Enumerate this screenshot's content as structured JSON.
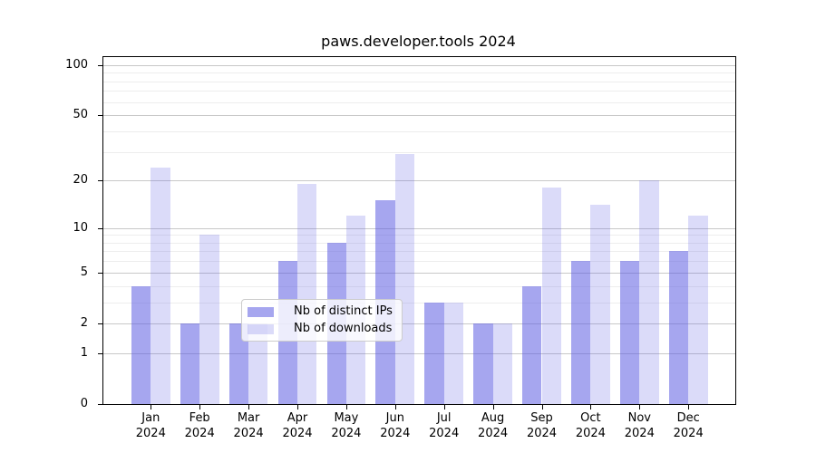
{
  "chart_data": {
    "type": "bar",
    "title": "paws.developer.tools 2024",
    "x_categories": [
      "Jan",
      "Feb",
      "Mar",
      "Apr",
      "May",
      "Jun",
      "Jul",
      "Aug",
      "Sep",
      "Oct",
      "Nov",
      "Dec"
    ],
    "x_year": "2024",
    "series": [
      {
        "name": "Nb of distinct IPs",
        "color": "#5c5ce2",
        "alpha": 0.55,
        "values": [
          4,
          2,
          2,
          6,
          8,
          15,
          3,
          2,
          4,
          6,
          6,
          7
        ]
      },
      {
        "name": "Nb of downloads",
        "color": "#5c5ce2",
        "alpha": 0.22,
        "values": [
          24,
          9,
          2,
          19,
          12,
          29,
          3,
          2,
          18,
          14,
          20,
          12
        ]
      }
    ],
    "y_scale": "log1p",
    "y_major_ticks": [
      0,
      1,
      2,
      5,
      10,
      20,
      50,
      100
    ],
    "y_minor_ticks": [
      3,
      4,
      6,
      7,
      8,
      9,
      30,
      40,
      60,
      70,
      80,
      90
    ],
    "ylim": [
      0,
      100
    ],
    "grid": true,
    "legend_position": "lower center",
    "colors": {
      "major_gridline": "#c8c8c8",
      "minor_gridline": "#ededed",
      "spine": "#000000",
      "text": "#000000",
      "background": "#ffffff"
    }
  }
}
